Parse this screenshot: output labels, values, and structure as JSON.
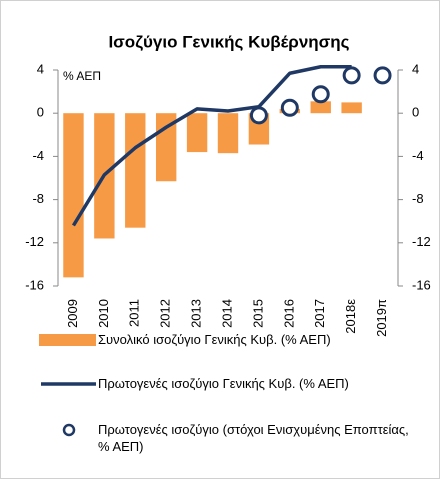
{
  "chart_data": {
    "type": "bar",
    "title": "Ισοζύγιο Γενικής Κυβέρνησης",
    "annotation": "% ΑΕΠ",
    "categories": [
      "2009",
      "2010",
      "2011",
      "2012",
      "2013",
      "2014",
      "2015",
      "2016",
      "2017",
      "2018ε",
      "2019π"
    ],
    "series": [
      {
        "name": "Συνολικό ισοζύγιο Γενικής Κυβ. (% ΑΕΠ)",
        "type": "bar",
        "color": "#f79a46",
        "values": [
          -15.2,
          -11.6,
          -10.6,
          -6.3,
          -3.6,
          -3.7,
          -2.9,
          0.4,
          1.1,
          1.0,
          null
        ]
      },
      {
        "name": "Πρωτογενές ισοζύγιο Γενικής Κυβ. (% ΑΕΠ)",
        "type": "line",
        "color": "#1f3864",
        "values": [
          -10.4,
          -5.7,
          -3.2,
          -1.3,
          0.4,
          0.2,
          0.6,
          3.7,
          4.3,
          4.3,
          null
        ]
      },
      {
        "name": "Πρωτογενές ισοζύγιο (στόχοι Ενισχυμένης Εποπτείας, % ΑΕΠ)",
        "type": "scatter",
        "color": "#1f3864",
        "values": [
          null,
          null,
          null,
          null,
          null,
          null,
          -0.2,
          0.5,
          1.75,
          3.5,
          3.5
        ]
      }
    ],
    "ylim": [
      -16,
      4
    ],
    "yticks": [
      4,
      0,
      -4,
      -8,
      -12,
      -16
    ],
    "y2lim": [
      -16,
      4
    ],
    "y2ticks": [
      4,
      0,
      -4,
      -8,
      -12,
      -16
    ],
    "grid": false
  }
}
